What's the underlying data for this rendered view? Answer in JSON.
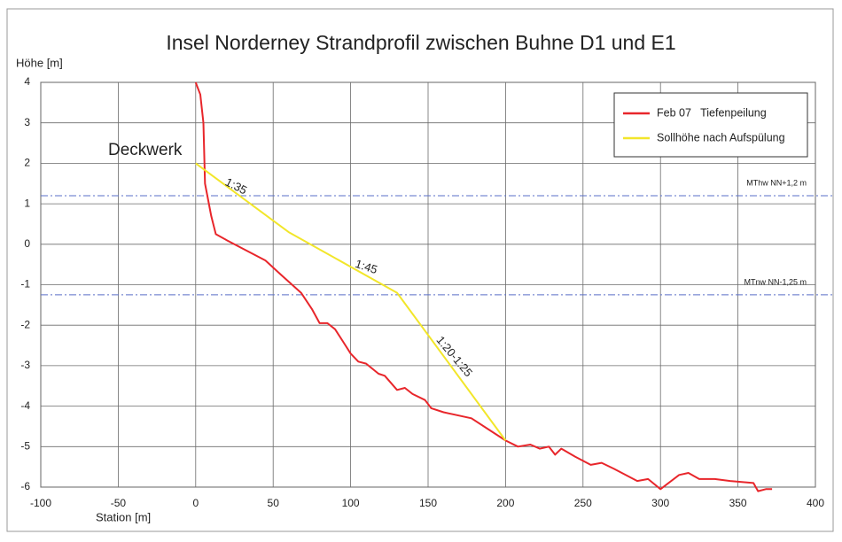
{
  "chart_data": {
    "type": "line",
    "title": "Insel Norderney Strandprofil zwischen Buhne D1 und E1",
    "y_label": "Höhe [m]",
    "x_label": "Station [m]",
    "xlim": [
      -100,
      400
    ],
    "ylim": [
      -6,
      4
    ],
    "xticks": [
      -100,
      -50,
      0,
      50,
      100,
      150,
      200,
      250,
      300,
      350,
      400
    ],
    "yticks": [
      -6,
      -5,
      -4,
      -3,
      -2,
      -1,
      0,
      1,
      2,
      3,
      4
    ],
    "grid": true,
    "legend": "upper right",
    "series": [
      {
        "name": "Feb 07   Tiefenpeilung",
        "color": "#e8262b",
        "x": [
          0,
          1,
          3,
          5,
          6,
          8,
          10,
          13,
          20,
          30,
          45,
          55,
          68,
          75,
          80,
          85,
          90,
          95,
          100,
          105,
          110,
          118,
          122,
          130,
          135,
          140,
          148,
          152,
          160,
          178,
          190,
          200,
          208,
          216,
          222,
          228,
          232,
          236,
          245,
          255,
          262,
          270,
          285,
          292,
          300,
          312,
          318,
          325,
          335,
          345,
          360,
          363,
          368,
          372
        ],
        "values": [
          4.0,
          3.9,
          3.7,
          3.0,
          1.5,
          1.1,
          0.7,
          0.25,
          0.1,
          -0.1,
          -0.4,
          -0.75,
          -1.2,
          -1.6,
          -1.95,
          -1.95,
          -2.1,
          -2.4,
          -2.7,
          -2.9,
          -2.95,
          -3.2,
          -3.25,
          -3.6,
          -3.55,
          -3.7,
          -3.85,
          -4.05,
          -4.15,
          -4.3,
          -4.6,
          -4.85,
          -5.0,
          -4.95,
          -5.05,
          -5.0,
          -5.2,
          -5.05,
          -5.25,
          -5.45,
          -5.4,
          -5.55,
          -5.85,
          -5.8,
          -6.05,
          -5.7,
          -5.65,
          -5.8,
          -5.8,
          -5.85,
          -5.9,
          -6.1,
          -6.05,
          -6.05
        ]
      },
      {
        "name": "Sollhöhe nach Aufspülung",
        "color": "#f2e62a",
        "x": [
          0,
          60,
          130,
          200
        ],
        "values": [
          2.0,
          0.3,
          -1.2,
          -4.85
        ]
      }
    ],
    "reference_lines": [
      {
        "value": 1.2,
        "label": "MThw NN+1,2 m",
        "color": "#5a6fc8"
      },
      {
        "value": -1.25,
        "label": "MTnw NN-1,25 m",
        "color": "#5a6fc8"
      }
    ],
    "annotations": [
      "Deckwerk",
      "1:35",
      "1:45",
      "1:20-1:25"
    ]
  }
}
